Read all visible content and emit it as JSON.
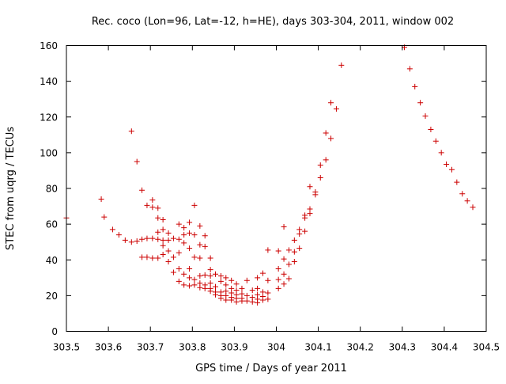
{
  "chart_data": {
    "type": "scatter",
    "title": "Rec. coco (Lon=96, Lat=-12, h=HE), days 303-304, 2011, window 002",
    "xlabel": "GPS time / Days of year 2011",
    "ylabel": "STEC from uqrg / TECUs",
    "xlim": [
      303.5,
      304.5
    ],
    "ylim": [
      0,
      160
    ],
    "x_ticks": [
      303.5,
      303.6,
      303.7,
      303.8,
      303.9,
      304.0,
      304.1,
      304.2,
      304.3,
      304.4,
      304.5
    ],
    "x_tick_labels": [
      "303.5",
      "303.6",
      "303.7",
      "303.8",
      "303.9",
      "304",
      "304.1",
      "304.2",
      "304.3",
      "304.4",
      "304.5"
    ],
    "y_ticks": [
      0,
      20,
      40,
      60,
      80,
      100,
      120,
      140,
      160
    ],
    "y_tick_labels": [
      "0",
      "20",
      "40",
      "60",
      "80",
      "100",
      "120",
      "140",
      "160"
    ],
    "grid": false,
    "marker": "+",
    "color": "#cc0000",
    "series": [
      {
        "name": "STEC",
        "points": [
          [
            303.5,
            63.5
          ],
          [
            303.583,
            74.0
          ],
          [
            303.59,
            64.0
          ],
          [
            303.61,
            57.0
          ],
          [
            303.625,
            54.0
          ],
          [
            303.64,
            51.0
          ],
          [
            303.655,
            112.0
          ],
          [
            303.655,
            50.0
          ],
          [
            303.668,
            95.0
          ],
          [
            303.668,
            50.5
          ],
          [
            303.68,
            79.0
          ],
          [
            303.68,
            51.5
          ],
          [
            303.68,
            41.5
          ],
          [
            303.692,
            70.5
          ],
          [
            303.692,
            52.0
          ],
          [
            303.692,
            41.5
          ],
          [
            303.705,
            73.5
          ],
          [
            303.705,
            69.5
          ],
          [
            303.705,
            52.0
          ],
          [
            303.705,
            41.0
          ],
          [
            303.718,
            69.0
          ],
          [
            303.718,
            63.5
          ],
          [
            303.718,
            55.5
          ],
          [
            303.718,
            51.5
          ],
          [
            303.718,
            41.0
          ],
          [
            303.73,
            62.5
          ],
          [
            303.73,
            57.0
          ],
          [
            303.73,
            51.0
          ],
          [
            303.73,
            48.0
          ],
          [
            303.73,
            43.0
          ],
          [
            303.743,
            55.0
          ],
          [
            303.743,
            51.0
          ],
          [
            303.743,
            45.0
          ],
          [
            303.743,
            39.0
          ],
          [
            303.755,
            52.0
          ],
          [
            303.755,
            41.5
          ],
          [
            303.755,
            33.0
          ],
          [
            303.768,
            60.0
          ],
          [
            303.768,
            51.5
          ],
          [
            303.768,
            44.0
          ],
          [
            303.768,
            35.0
          ],
          [
            303.768,
            28.0
          ],
          [
            303.78,
            58.0
          ],
          [
            303.78,
            54.0
          ],
          [
            303.78,
            49.5
          ],
          [
            303.78,
            32.0
          ],
          [
            303.78,
            26.0
          ],
          [
            303.793,
            61.0
          ],
          [
            303.793,
            55.0
          ],
          [
            303.793,
            46.5
          ],
          [
            303.793,
            35.0
          ],
          [
            303.793,
            30.0
          ],
          [
            303.793,
            25.5
          ],
          [
            303.805,
            70.5
          ],
          [
            303.805,
            54.0
          ],
          [
            303.805,
            41.5
          ],
          [
            303.805,
            29.0
          ],
          [
            303.805,
            26.0
          ],
          [
            303.818,
            59.0
          ],
          [
            303.818,
            48.5
          ],
          [
            303.818,
            41.0
          ],
          [
            303.818,
            31.0
          ],
          [
            303.818,
            27.0
          ],
          [
            303.818,
            24.5
          ],
          [
            303.83,
            53.5
          ],
          [
            303.83,
            47.5
          ],
          [
            303.83,
            31.5
          ],
          [
            303.83,
            26.0
          ],
          [
            303.83,
            24.0
          ],
          [
            303.843,
            41.0
          ],
          [
            303.843,
            34.5
          ],
          [
            303.843,
            31.0
          ],
          [
            303.843,
            27.0
          ],
          [
            303.843,
            24.0
          ],
          [
            303.843,
            22.5
          ],
          [
            303.855,
            32.0
          ],
          [
            303.855,
            25.0
          ],
          [
            303.855,
            22.0
          ],
          [
            303.855,
            20.5
          ],
          [
            303.868,
            31.0
          ],
          [
            303.868,
            28.0
          ],
          [
            303.868,
            22.0
          ],
          [
            303.868,
            20.0
          ],
          [
            303.868,
            18.5
          ],
          [
            303.88,
            30.0
          ],
          [
            303.88,
            26.0
          ],
          [
            303.88,
            22.5
          ],
          [
            303.88,
            20.0
          ],
          [
            303.88,
            17.5
          ],
          [
            303.893,
            28.5
          ],
          [
            303.893,
            24.0
          ],
          [
            303.893,
            21.5
          ],
          [
            303.893,
            19.0
          ],
          [
            303.893,
            17.5
          ],
          [
            303.905,
            26.5
          ],
          [
            303.905,
            23.0
          ],
          [
            303.905,
            20.5
          ],
          [
            303.905,
            18.5
          ],
          [
            303.905,
            16.5
          ],
          [
            303.918,
            24.0
          ],
          [
            303.918,
            21.0
          ],
          [
            303.918,
            18.5
          ],
          [
            303.918,
            17.0
          ],
          [
            303.93,
            28.5
          ],
          [
            303.93,
            20.0
          ],
          [
            303.93,
            17.0
          ],
          [
            303.943,
            23.0
          ],
          [
            303.943,
            19.0
          ],
          [
            303.943,
            16.5
          ],
          [
            303.955,
            30.0
          ],
          [
            303.955,
            24.0
          ],
          [
            303.955,
            20.5
          ],
          [
            303.955,
            18.0
          ],
          [
            303.955,
            16.0
          ],
          [
            303.968,
            32.5
          ],
          [
            303.968,
            22.0
          ],
          [
            303.968,
            19.5
          ],
          [
            303.968,
            17.5
          ],
          [
            303.98,
            45.5
          ],
          [
            303.98,
            28.5
          ],
          [
            303.98,
            21.5
          ],
          [
            303.98,
            18.0
          ],
          [
            304.005,
            45.0
          ],
          [
            304.005,
            35.0
          ],
          [
            304.005,
            29.0
          ],
          [
            304.005,
            24.0
          ],
          [
            304.018,
            58.5
          ],
          [
            304.018,
            40.5
          ],
          [
            304.018,
            32.0
          ],
          [
            304.018,
            26.5
          ],
          [
            304.03,
            45.5
          ],
          [
            304.03,
            37.5
          ],
          [
            304.03,
            29.5
          ],
          [
            304.043,
            51.0
          ],
          [
            304.043,
            44.5
          ],
          [
            304.043,
            39.0
          ],
          [
            304.055,
            57.0
          ],
          [
            304.055,
            54.5
          ],
          [
            304.055,
            46.5
          ],
          [
            304.068,
            65.0
          ],
          [
            304.068,
            63.5
          ],
          [
            304.068,
            56.0
          ],
          [
            304.08,
            81.0
          ],
          [
            304.08,
            68.5
          ],
          [
            304.08,
            66.0
          ],
          [
            304.093,
            78.0
          ],
          [
            304.093,
            76.5
          ],
          [
            304.105,
            93.0
          ],
          [
            304.105,
            86.0
          ],
          [
            304.118,
            111.0
          ],
          [
            304.118,
            96.0
          ],
          [
            304.13,
            128.0
          ],
          [
            304.13,
            108.0
          ],
          [
            304.143,
            124.5
          ],
          [
            304.155,
            149.0
          ],
          [
            304.305,
            159.0
          ],
          [
            304.318,
            147.0
          ],
          [
            304.33,
            137.0
          ],
          [
            304.343,
            128.0
          ],
          [
            304.355,
            120.5
          ],
          [
            304.368,
            113.0
          ],
          [
            304.38,
            106.5
          ],
          [
            304.393,
            100.0
          ],
          [
            304.405,
            93.5
          ],
          [
            304.418,
            90.5
          ],
          [
            304.43,
            83.5
          ],
          [
            304.443,
            77.0
          ],
          [
            304.455,
            73.0
          ],
          [
            304.468,
            69.5
          ]
        ]
      }
    ]
  }
}
